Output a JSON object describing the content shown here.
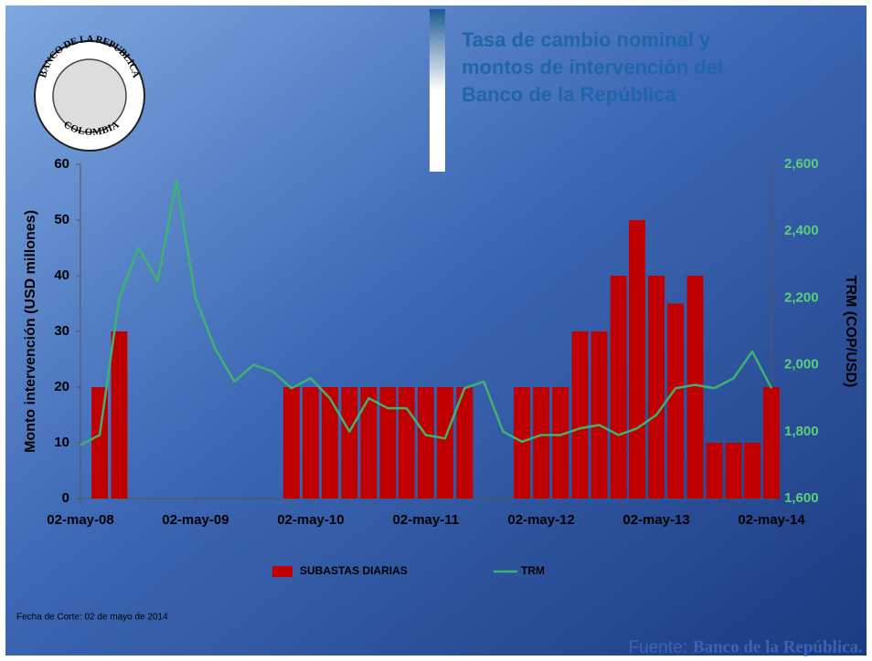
{
  "chart_data": {
    "type": "bar",
    "title": [
      "Tasa de cambio nominal y",
      "montos de intervención del",
      "Banco de la República"
    ],
    "logo_text": [
      "BANCO DE LA REPUBLICA",
      "COLOMBIA"
    ],
    "y_label": "Monto intervención (USD millones)",
    "y2_label": "TRM (COP/USD)",
    "footnote": "Fecha de Corte: 02 de mayo de 2014",
    "source": [
      "Fuente:",
      "Banco de la República."
    ],
    "x": [
      "2008-05-02",
      "2008-07-02",
      "2008-09-02",
      "2008-11-02",
      "2009-01-02",
      "2009-03-02",
      "2009-05-02",
      "2009-07-02",
      "2009-09-02",
      "2009-11-02",
      "2010-01-02",
      "2010-03-02",
      "2010-05-02",
      "2010-07-02",
      "2010-09-02",
      "2010-11-02",
      "2011-01-02",
      "2011-03-02",
      "2011-05-02",
      "2011-07-02",
      "2011-09-02",
      "2011-11-02",
      "2012-01-02",
      "2012-03-02",
      "2012-05-02",
      "2012-07-02",
      "2012-09-02",
      "2012-11-02",
      "2013-01-02",
      "2013-03-02",
      "2013-05-02",
      "2013-07-02",
      "2013-09-02",
      "2013-11-02",
      "2014-01-02",
      "2014-03-02",
      "2014-05-02"
    ],
    "xlim": [
      "2008-05-02",
      "2014-05-02"
    ],
    "xticks": [
      {
        "value": "2008-05-02",
        "label": "02-may-08"
      },
      {
        "value": "2009-05-02",
        "label": "02-may-09"
      },
      {
        "value": "2010-05-02",
        "label": "02-may-10"
      },
      {
        "value": "2011-05-02",
        "label": "02-may-11"
      },
      {
        "value": "2012-05-02",
        "label": "02-may-12"
      },
      {
        "value": "2013-05-02",
        "label": "02-may-13"
      },
      {
        "value": "2014-05-02",
        "label": "02-may-14"
      }
    ],
    "ylim": [
      0,
      60
    ],
    "yticks": [
      0,
      10,
      20,
      30,
      40,
      50,
      60
    ],
    "y2lim": [
      1600,
      2600
    ],
    "y2ticks": [
      {
        "value": 1600,
        "label": "1,600"
      },
      {
        "value": 1800,
        "label": "1,800"
      },
      {
        "value": 2000,
        "label": "2,000"
      },
      {
        "value": 2200,
        "label": "2,200"
      },
      {
        "value": 2400,
        "label": "2,400"
      },
      {
        "value": 2600,
        "label": "2,600"
      }
    ],
    "series": [
      {
        "name": "SUBASTAS DIARIAS",
        "type": "bar",
        "color": "#c00000",
        "values": [
          0,
          20,
          30,
          0,
          0,
          0,
          0,
          0,
          0,
          0,
          0,
          20,
          20,
          20,
          20,
          20,
          20,
          20,
          20,
          20,
          20,
          0,
          0,
          20,
          20,
          20,
          30,
          30,
          40,
          50,
          40,
          35,
          40,
          10,
          10,
          10,
          20
        ]
      },
      {
        "name": "TRM",
        "type": "line",
        "axis": "y2",
        "color": "#3cb371",
        "values": [
          1760,
          1790,
          2200,
          2350,
          2250,
          2550,
          2200,
          2050,
          1950,
          2000,
          1980,
          1930,
          1960,
          1900,
          1800,
          1900,
          1870,
          1870,
          1790,
          1780,
          1930,
          1950,
          1800,
          1770,
          1790,
          1790,
          1810,
          1820,
          1790,
          1810,
          1850,
          1930,
          1940,
          1930,
          1960,
          2040,
          1930
        ]
      }
    ],
    "legend": "bottom"
  }
}
